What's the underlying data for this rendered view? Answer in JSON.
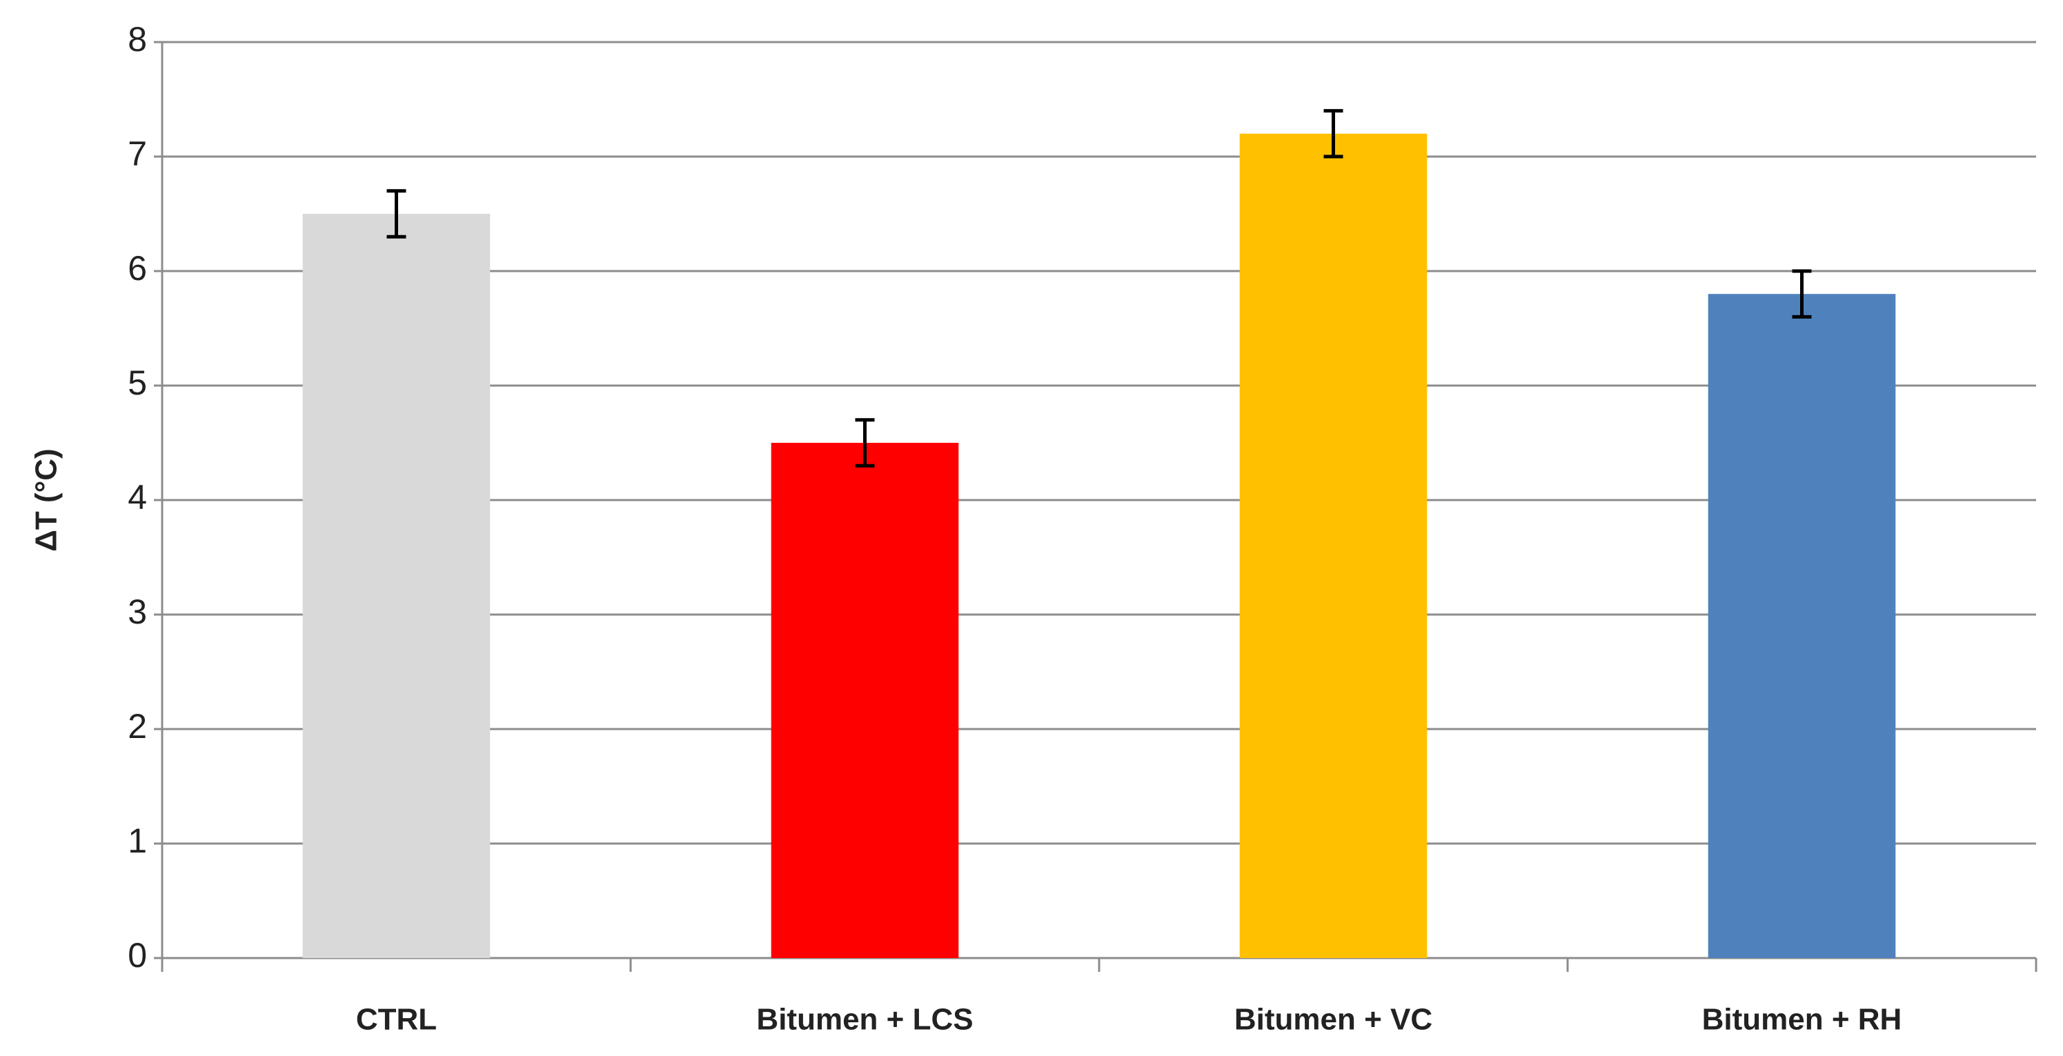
{
  "chart_data": {
    "type": "bar",
    "ylabel": "ΔT (°C)",
    "categories": [
      "CTRL",
      "Bitumen + LCS",
      "Bitumen + VC",
      "Bitumen + RH"
    ],
    "values": [
      6.5,
      4.5,
      7.2,
      5.8
    ],
    "errors": [
      0.2,
      0.2,
      0.2,
      0.2
    ],
    "colors": [
      "#d9d9d9",
      "#ff0000",
      "#ffc000",
      "#4f81bd"
    ],
    "ylim": [
      0,
      8
    ],
    "yticks": [
      0,
      1,
      2,
      3,
      4,
      5,
      6,
      7,
      8
    ],
    "grid": true
  }
}
